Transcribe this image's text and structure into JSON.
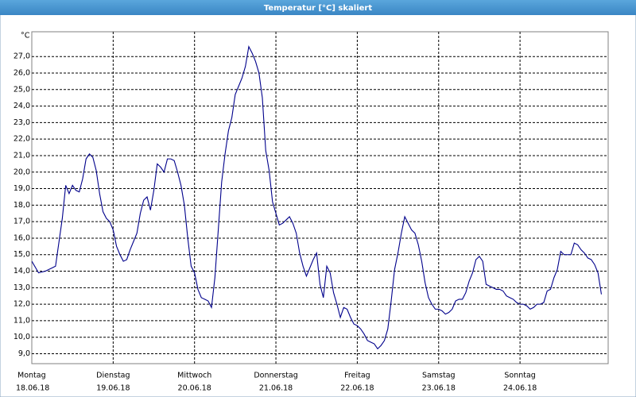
{
  "chart_data": {
    "type": "line",
    "title": "Temperatur [°C] skaliert",
    "y_unit": "°C",
    "xlim": [
      0,
      170
    ],
    "ylim": [
      8.4,
      28.5
    ],
    "xticks": [
      {
        "value": 0,
        "label": "Montag"
      },
      {
        "value": 24,
        "label": "Dienstag"
      },
      {
        "value": 48,
        "label": "Mittwoch"
      },
      {
        "value": 72,
        "label": "Donnerstag"
      },
      {
        "value": 96,
        "label": "Freitag"
      },
      {
        "value": 120,
        "label": "Samstag"
      },
      {
        "value": 144,
        "label": "Sonntag"
      }
    ],
    "xtick_dates": [
      "18.06.18",
      "19.06.18",
      "20.06.18",
      "21.06.18",
      "22.06.18",
      "23.06.18",
      "24.06.18"
    ],
    "yticks": [
      {
        "value": 9,
        "label": "9,0"
      },
      {
        "value": 10,
        "label": "10,0"
      },
      {
        "value": 11,
        "label": "11,0"
      },
      {
        "value": 12,
        "label": "12,0"
      },
      {
        "value": 13,
        "label": "13,0"
      },
      {
        "value": 14,
        "label": "14,0"
      },
      {
        "value": 15,
        "label": "15,0"
      },
      {
        "value": 16,
        "label": "16,0"
      },
      {
        "value": 17,
        "label": "17,0"
      },
      {
        "value": 18,
        "label": "18,0"
      },
      {
        "value": 19,
        "label": "19,0"
      },
      {
        "value": 20,
        "label": "20,0"
      },
      {
        "value": 21,
        "label": "21,0"
      },
      {
        "value": 22,
        "label": "22,0"
      },
      {
        "value": 23,
        "label": "23,0"
      },
      {
        "value": 24,
        "label": "24,0"
      },
      {
        "value": 25,
        "label": "25,0"
      },
      {
        "value": 26,
        "label": "26,0"
      },
      {
        "value": 27,
        "label": "27,0"
      }
    ],
    "grid": true,
    "x": [
      0,
      2,
      4,
      6,
      7,
      9,
      10,
      11,
      12,
      13,
      14,
      15,
      16,
      17,
      18,
      19,
      20,
      21,
      22,
      23,
      24,
      25,
      26,
      27,
      28,
      29,
      30,
      31,
      32,
      33,
      34,
      35,
      36,
      37,
      38,
      39,
      40,
      41,
      42,
      43,
      44,
      45,
      46,
      47,
      48,
      49,
      50,
      51,
      52,
      53,
      54,
      55,
      56,
      57,
      58,
      59,
      60,
      61,
      62,
      63,
      64,
      65,
      66,
      67,
      68,
      69,
      70,
      71,
      72,
      73,
      74,
      75,
      76,
      77,
      78,
      79,
      80,
      81,
      82,
      83,
      84,
      85,
      86,
      87,
      88,
      89,
      90,
      91,
      92,
      93,
      94,
      95,
      96,
      97,
      98,
      99,
      100,
      101,
      102,
      103,
      104,
      105,
      106,
      107,
      108,
      109,
      110,
      111,
      112,
      113,
      114,
      115,
      116,
      117,
      118,
      119,
      120,
      121,
      122,
      123,
      124,
      125,
      126,
      127,
      128,
      129,
      130,
      131,
      132,
      133,
      134,
      135,
      136,
      137,
      138,
      139,
      140,
      141,
      142,
      143,
      144,
      145,
      146,
      147,
      148,
      149,
      150,
      151,
      152,
      153,
      154,
      155,
      156,
      157,
      158,
      159,
      160,
      161,
      162,
      163,
      164,
      165,
      166,
      167,
      168
    ],
    "series": [
      {
        "name": "Temperatur",
        "color": "#00008b",
        "values": [
          14.6,
          13.9,
          14.0,
          14.2,
          14.3,
          17.2,
          19.2,
          18.7,
          19.2,
          18.9,
          18.8,
          19.6,
          20.8,
          21.1,
          20.9,
          20.1,
          18.7,
          17.6,
          17.2,
          17.0,
          16.5,
          15.5,
          15.0,
          14.6,
          14.7,
          15.3,
          15.8,
          16.3,
          17.5,
          18.3,
          18.5,
          17.7,
          18.9,
          20.5,
          20.3,
          20.0,
          20.8,
          20.8,
          20.7,
          20.0,
          19.2,
          18.0,
          16.0,
          14.3,
          13.9,
          12.9,
          12.4,
          12.3,
          12.2,
          11.8,
          13.6,
          16.5,
          19.4,
          21.1,
          22.5,
          23.3,
          24.7,
          25.2,
          25.7,
          26.4,
          27.6,
          27.2,
          26.7,
          26.0,
          24.5,
          21.3,
          20.1,
          18.2,
          17.5,
          16.8,
          16.9,
          17.1,
          17.3,
          16.9,
          16.3,
          15.1,
          14.3,
          13.7,
          14.2,
          14.7,
          15.1,
          13.2,
          12.4,
          14.3,
          13.9,
          12.7,
          12.0,
          11.2,
          11.8,
          11.7,
          11.2,
          10.8,
          10.7,
          10.5,
          10.2,
          9.8,
          9.7,
          9.6,
          9.3,
          9.5,
          9.8,
          10.5,
          12.2,
          14.1,
          15.1,
          16.3,
          17.3,
          16.9,
          16.5,
          16.3,
          15.6,
          14.6,
          13.3,
          12.4,
          12.0,
          11.7,
          11.7,
          11.6,
          11.4,
          11.5,
          11.7,
          12.2,
          12.3,
          12.3,
          12.7,
          13.4,
          13.9,
          14.7,
          14.9,
          14.6,
          13.2,
          13.1,
          13.0,
          12.9,
          12.9,
          12.8,
          12.5,
          12.4,
          12.3,
          12.1,
          12.0,
          12.0,
          11.9,
          11.7,
          11.8,
          12.0,
          12.0,
          12.1,
          12.8,
          12.9,
          13.6,
          14.1,
          15.2,
          15.0,
          15.0,
          15.0,
          15.7,
          15.6,
          15.3,
          15.1,
          14.8,
          14.7,
          14.4,
          13.9,
          12.6
        ]
      }
    ]
  }
}
